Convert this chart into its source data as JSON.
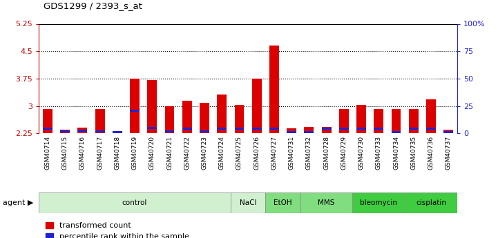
{
  "title": "GDS1299 / 2393_s_at",
  "samples": [
    "GSM40714",
    "GSM40715",
    "GSM40716",
    "GSM40717",
    "GSM40718",
    "GSM40719",
    "GSM40720",
    "GSM40721",
    "GSM40722",
    "GSM40723",
    "GSM40724",
    "GSM40725",
    "GSM40726",
    "GSM40727",
    "GSM40731",
    "GSM40732",
    "GSM40728",
    "GSM40729",
    "GSM40730",
    "GSM40733",
    "GSM40734",
    "GSM40735",
    "GSM40736",
    "GSM40737"
  ],
  "red_values": [
    2.92,
    2.35,
    2.4,
    2.92,
    2.3,
    3.75,
    3.7,
    3.0,
    3.15,
    3.08,
    3.32,
    3.02,
    3.75,
    4.65,
    2.38,
    2.42,
    2.42,
    2.92,
    3.02,
    2.92,
    2.92,
    2.92,
    3.18,
    2.35
  ],
  "blue_values": [
    2.375,
    2.295,
    2.315,
    2.295,
    2.275,
    2.875,
    2.395,
    2.295,
    2.375,
    2.295,
    2.375,
    2.375,
    2.375,
    2.375,
    2.275,
    2.275,
    2.375,
    2.375,
    2.375,
    2.375,
    2.275,
    2.375,
    2.375,
    2.275
  ],
  "agents": [
    {
      "label": "control",
      "start": 0,
      "end": 11,
      "color": "#d0f0d0"
    },
    {
      "label": "NaCl",
      "start": 11,
      "end": 13,
      "color": "#d0f0d0"
    },
    {
      "label": "EtOH",
      "start": 13,
      "end": 15,
      "color": "#80dd80"
    },
    {
      "label": "MMS",
      "start": 15,
      "end": 18,
      "color": "#80dd80"
    },
    {
      "label": "bleomycin",
      "start": 18,
      "end": 21,
      "color": "#40cc40"
    },
    {
      "label": "cisplatin",
      "start": 21,
      "end": 24,
      "color": "#40cc40"
    }
  ],
  "ymin": 2.25,
  "ymax": 5.25,
  "yticks_left": [
    2.25,
    3.0,
    3.75,
    4.5,
    5.25
  ],
  "ytick_labels_left": [
    "2.25",
    "3",
    "3.75",
    "4.5",
    "5.25"
  ],
  "yticks_right_vals": [
    0,
    25,
    50,
    75,
    100
  ],
  "ytick_labels_right": [
    "0",
    "25",
    "50",
    "75",
    "100%"
  ],
  "hgrid_lines": [
    3.0,
    3.75,
    4.5
  ],
  "bar_color": "#dd0000",
  "blue_color": "#2222cc",
  "bar_width": 0.55,
  "left_tick_color": "#cc0000",
  "right_tick_color": "#2222cc",
  "ticklabel_bg": "#d0d0d0"
}
